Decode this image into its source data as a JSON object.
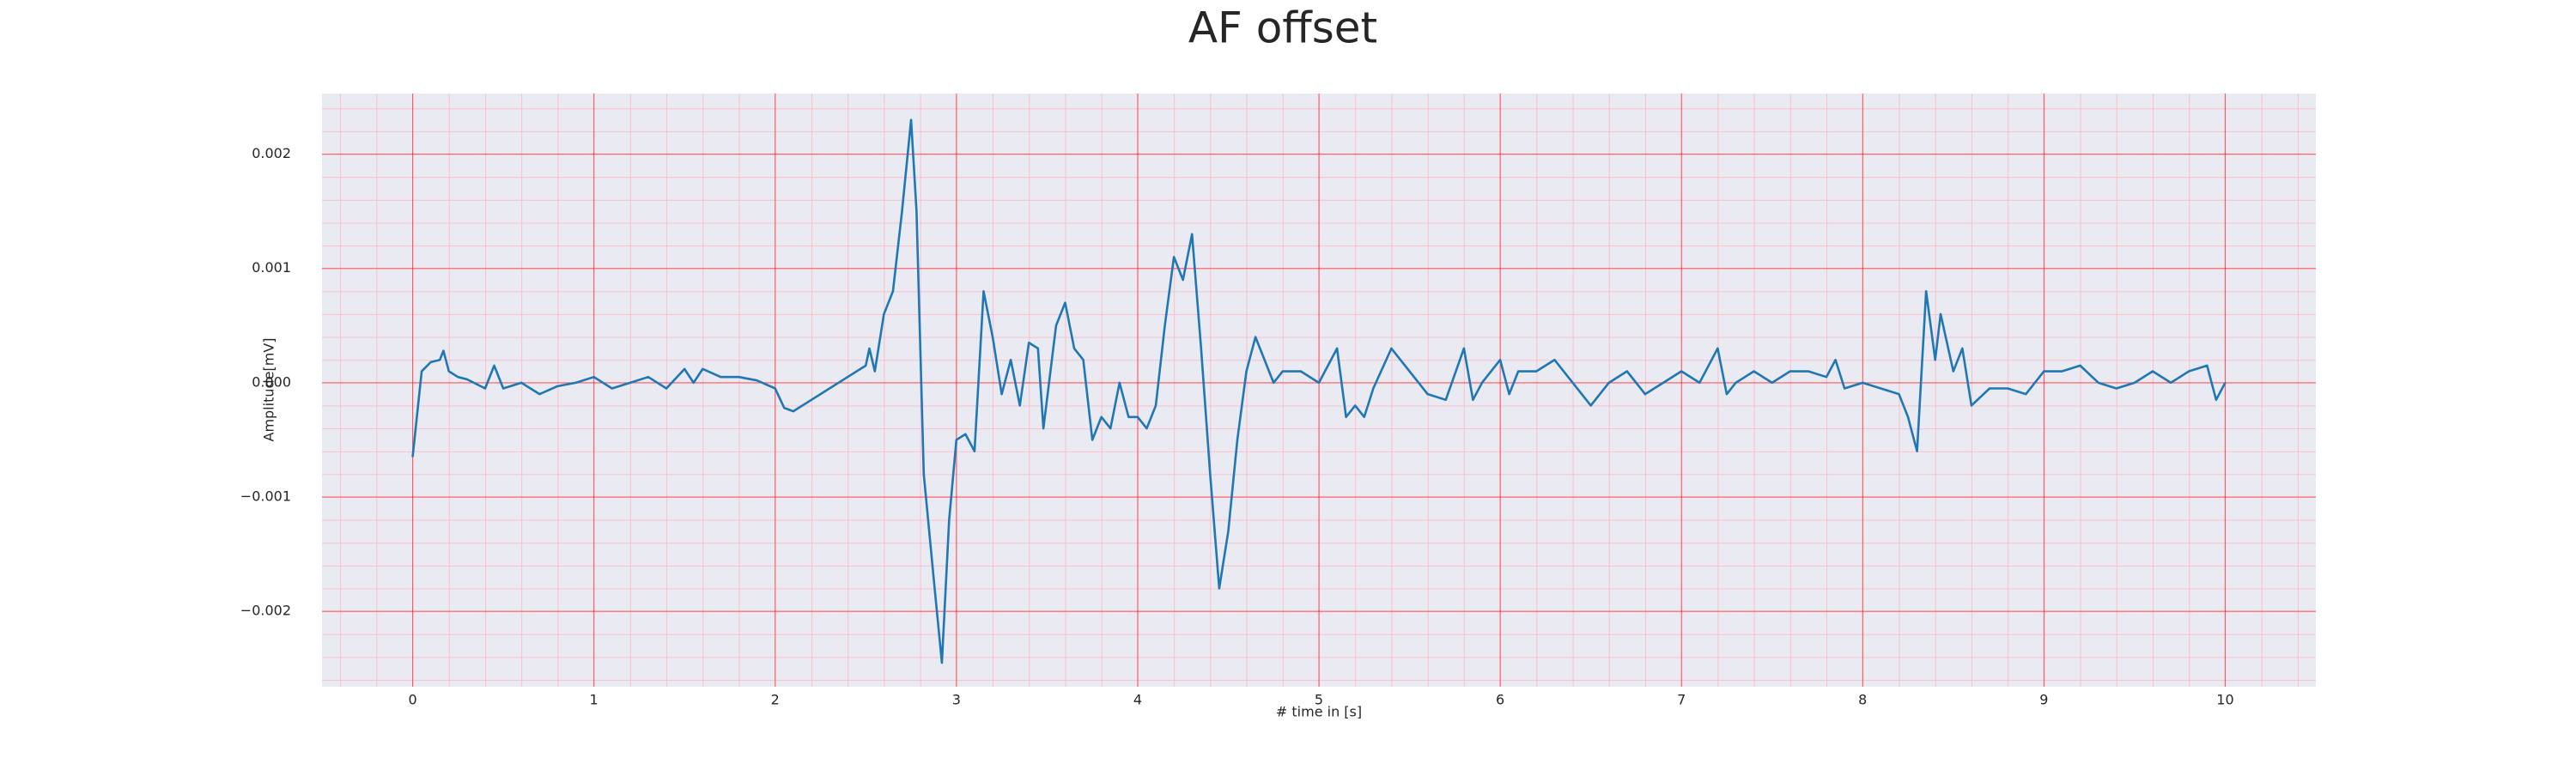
{
  "chart_data": {
    "type": "line",
    "title": "AF offset",
    "xlabel": "# time in [s]",
    "ylabel": "Amplitude[mV]",
    "x": [
      0,
      0.05,
      0.1,
      0.15,
      0.17,
      0.2,
      0.25,
      0.3,
      0.4,
      0.45,
      0.5,
      0.6,
      0.7,
      0.8,
      0.9,
      1.0,
      1.1,
      1.2,
      1.3,
      1.4,
      1.5,
      1.55,
      1.6,
      1.7,
      1.8,
      1.9,
      2.0,
      2.05,
      2.1,
      2.2,
      2.3,
      2.4,
      2.5,
      2.52,
      2.55,
      2.6,
      2.65,
      2.7,
      2.75,
      2.78,
      2.82,
      2.88,
      2.92,
      2.96,
      3.0,
      3.05,
      3.1,
      3.15,
      3.2,
      3.25,
      3.3,
      3.35,
      3.4,
      3.45,
      3.48,
      3.55,
      3.6,
      3.65,
      3.7,
      3.75,
      3.8,
      3.85,
      3.9,
      3.95,
      4.0,
      4.05,
      4.1,
      4.15,
      4.2,
      4.25,
      4.3,
      4.35,
      4.4,
      4.45,
      4.5,
      4.55,
      4.6,
      4.65,
      4.7,
      4.75,
      4.8,
      4.9,
      5.0,
      5.1,
      5.15,
      5.2,
      5.25,
      5.3,
      5.4,
      5.5,
      5.6,
      5.7,
      5.8,
      5.85,
      5.9,
      6.0,
      6.05,
      6.1,
      6.2,
      6.3,
      6.4,
      6.5,
      6.6,
      6.7,
      6.8,
      6.9,
      7.0,
      7.1,
      7.2,
      7.25,
      7.3,
      7.4,
      7.5,
      7.6,
      7.7,
      7.8,
      7.85,
      7.9,
      8.0,
      8.1,
      8.2,
      8.25,
      8.3,
      8.35,
      8.4,
      8.43,
      8.5,
      8.55,
      8.6,
      8.7,
      8.8,
      8.9,
      9.0,
      9.1,
      9.2,
      9.3,
      9.4,
      9.5,
      9.6,
      9.7,
      9.8,
      9.9,
      9.95,
      10.0
    ],
    "values": [
      -0.00065,
      0.0001,
      0.00018,
      0.0002,
      0.00028,
      0.0001,
      5e-05,
      3e-05,
      -5e-05,
      0.00015,
      -5e-05,
      0,
      -0.0001,
      -3e-05,
      0,
      5e-05,
      -5e-05,
      0,
      5e-05,
      -5e-05,
      0.00012,
      0,
      0.00012,
      5e-05,
      5e-05,
      2e-05,
      -5e-05,
      -0.00022,
      -0.00025,
      -0.00015,
      -5e-05,
      5e-05,
      0.00015,
      0.0003,
      0.0001,
      0.0006,
      0.0008,
      0.0015,
      0.0023,
      0.0015,
      -0.0008,
      -0.0018,
      -0.00245,
      -0.0012,
      -0.0005,
      -0.00045,
      -0.0006,
      0.0008,
      0.0004,
      -0.0001,
      0.0002,
      -0.0002,
      0.00035,
      0.0003,
      -0.0004,
      0.0005,
      0.0007,
      0.0003,
      0.0002,
      -0.0005,
      -0.0003,
      -0.0004,
      0,
      -0.0003,
      -0.0003,
      -0.0004,
      -0.0002,
      0.0005,
      0.0011,
      0.0009,
      0.0013,
      0.0003,
      -0.0008,
      -0.0018,
      -0.0013,
      -0.0005,
      0.0001,
      0.0004,
      0.0002,
      0,
      0.0001,
      0.0001,
      0,
      0.0003,
      -0.0003,
      -0.0002,
      -0.0003,
      -5e-05,
      0.0003,
      0.0001,
      -0.0001,
      -0.00015,
      0.0003,
      -0.00015,
      0,
      0.0002,
      -0.0001,
      0.0001,
      0.0001,
      0.0002,
      0,
      -0.0002,
      0,
      0.0001,
      -0.0001,
      0,
      0.0001,
      0,
      0.0003,
      -0.0001,
      0,
      0.0001,
      0,
      0.0001,
      0.0001,
      5e-05,
      0.0002,
      -5e-05,
      0,
      -5e-05,
      -0.0001,
      -0.0003,
      -0.0006,
      0.0008,
      0.0002,
      0.0006,
      0.0001,
      0.0003,
      -0.0002,
      -5e-05,
      -5e-05,
      -0.0001,
      0.0001,
      0.0001,
      0.00015,
      0,
      -5e-05,
      0,
      0.0001,
      0,
      0.0001,
      0.00015,
      -0.00015,
      0
    ],
    "color": "#1f77b4",
    "xlim": [
      -0.5,
      10.5
    ],
    "xticks": [
      0,
      1,
      2,
      3,
      4,
      5,
      6,
      7,
      8,
      9,
      10
    ],
    "ylim": [
      -0.00266,
      0.00253
    ],
    "yticks": [
      {
        "value": -0.002,
        "label": "−0.002"
      },
      {
        "value": -0.001,
        "label": "−0.001"
      },
      {
        "value": 0,
        "label": "0.000"
      },
      0.001,
      0.002
    ],
    "grid": true,
    "grid_color": "#ff0000",
    "minor_grid": true,
    "minor_grid_color": "#ffb6c1",
    "background": "#eaeaf2"
  }
}
